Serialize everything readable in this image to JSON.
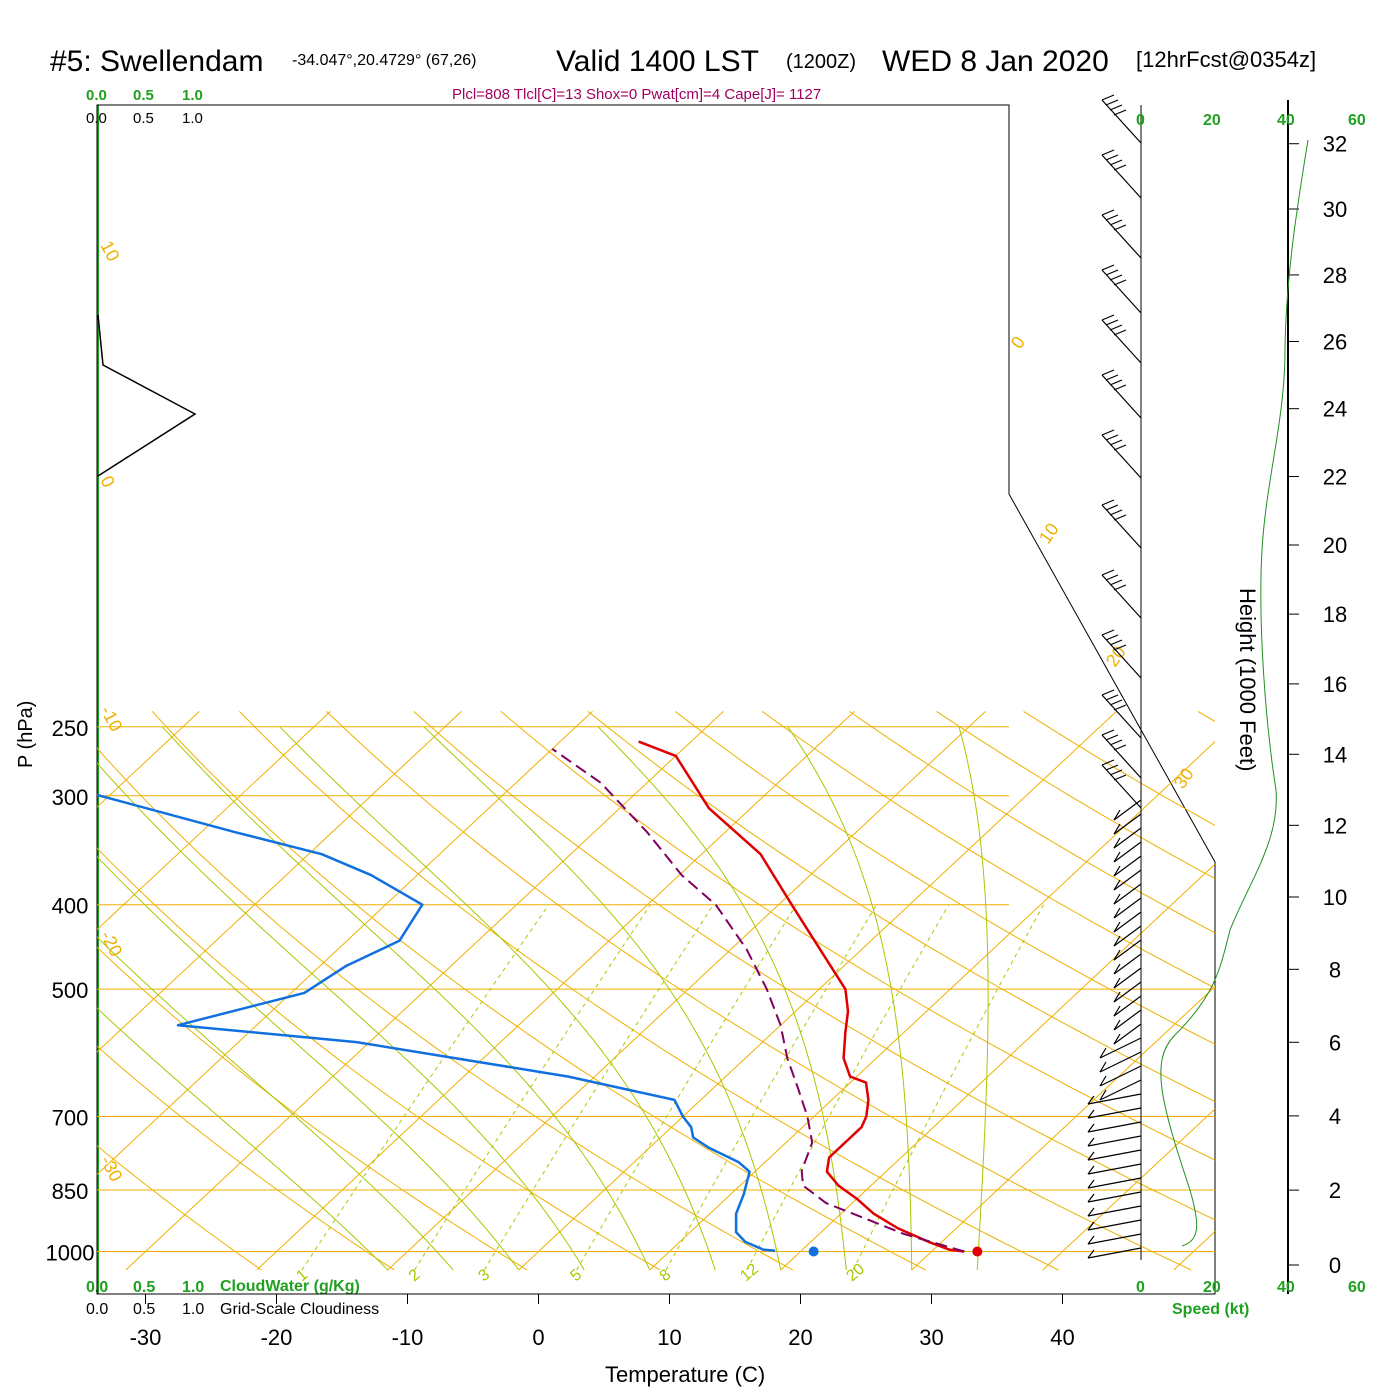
{
  "header": {
    "station": "#5: Swellendam",
    "coords": "-34.047°,20.4729° (67,26)",
    "valid": "Valid 1400 LST",
    "zulu": "(1200Z)",
    "date": "WED 8 Jan 2020",
    "forecast": "[12hrFcst@0354z]",
    "params": "Plcl=808 Tlcl[C]=13 Shox=0 Pwat[cm]=4 Cape[J]= 1127"
  },
  "cloud_scale_green": [
    "0.0",
    "0.5",
    "1.0"
  ],
  "cloud_scale_black": [
    "0.0",
    "0.5",
    "1.0"
  ],
  "cloud_water_label": "CloudWater (g/Kg)",
  "cloudiness_label": "Grid-Scale Cloudiness",
  "speed_label": "Speed (kt)",
  "colors": {
    "isotherm": "#f0b000",
    "dry_adiabat": "#f0b000",
    "moist_adiabat": "#a8c800",
    "mixing_ratio": "#a8c800",
    "temperature": "#e00000",
    "dewpoint": "#1070e0",
    "parcel": "#800060",
    "speed": "#209020",
    "params_text": "#a00060",
    "green_text": "#20a020"
  },
  "chart_data": {
    "type": "line",
    "title": "Skew-T sounding #5 Swellendam",
    "xlabel": "Temperature (C)",
    "ylabel": "P (hPa)",
    "y2label": "Height (1000 Feet)",
    "x_ticks": [
      "-30",
      "-20",
      "-10",
      "0",
      "10",
      "20",
      "30",
      "40"
    ],
    "p_ticks": [
      "250",
      "300",
      "400",
      "500",
      "700",
      "850",
      "1000"
    ],
    "height_ticks": [
      "0",
      "2",
      "4",
      "6",
      "8",
      "10",
      "12",
      "14",
      "16",
      "18",
      "20",
      "22",
      "24",
      "26",
      "28",
      "30",
      "32"
    ],
    "speed_ticks": [
      "0",
      "20",
      "40",
      "60"
    ],
    "dry_adiabat_labels": [
      "10",
      "0",
      "-10",
      "-20",
      "-30",
      "0",
      "10",
      "20",
      "30"
    ],
    "mixing_ratio_labels": [
      "1",
      "2",
      "3",
      "5",
      "8",
      "12",
      "20"
    ],
    "series": [
      {
        "name": "Temperature",
        "points": [
          [
            32.5,
            1000
          ],
          [
            31.2,
            995
          ],
          [
            29,
            975
          ],
          [
            25.5,
            940
          ],
          [
            22.5,
            905
          ],
          [
            20,
            870
          ],
          [
            17.5,
            840
          ],
          [
            15.5,
            810
          ],
          [
            14.5,
            780
          ],
          [
            14.5,
            750
          ],
          [
            14.5,
            720
          ],
          [
            14,
            700
          ],
          [
            12.8,
            670
          ],
          [
            11.2,
            640
          ],
          [
            9.5,
            630
          ],
          [
            7.5,
            600
          ],
          [
            5.5,
            560
          ],
          [
            4,
            530
          ],
          [
            2,
            500
          ],
          [
            -3.2,
            450
          ],
          [
            -9,
            400
          ],
          [
            -15.5,
            350
          ],
          [
            -23.2,
            310
          ],
          [
            -30,
            270
          ],
          [
            -34,
            260
          ]
        ]
      },
      {
        "name": "Dewpoint",
        "points": [
          [
            18,
            998
          ],
          [
            17,
            995
          ],
          [
            15,
            975
          ],
          [
            13.5,
            950
          ],
          [
            12,
            905
          ],
          [
            11,
            860
          ],
          [
            9.6,
            810
          ],
          [
            8,
            790
          ],
          [
            4.5,
            760
          ],
          [
            2.5,
            740
          ],
          [
            1.5,
            720
          ],
          [
            0,
            700
          ],
          [
            -2,
            670
          ],
          [
            -12,
            630
          ],
          [
            -31,
            575
          ],
          [
            -46,
            550
          ],
          [
            -39,
            505
          ],
          [
            -38,
            470
          ],
          [
            -36,
            440
          ],
          [
            -37.2,
            400
          ],
          [
            -43.5,
            370
          ],
          [
            -49,
            350
          ],
          [
            -57.5,
            330
          ],
          [
            -73,
            295
          ],
          [
            -81,
            279
          ],
          [
            -84,
            260
          ]
        ]
      },
      {
        "name": "Parcel",
        "points": [
          [
            32.5,
            1000
          ],
          [
            26.5,
            955
          ],
          [
            21.5,
            910
          ],
          [
            18,
            880
          ],
          [
            14.8,
            840
          ],
          [
            13.5,
            808
          ],
          [
            12,
            750
          ],
          [
            9.5,
            700
          ],
          [
            6.5,
            650
          ],
          [
            3.2,
            600
          ],
          [
            0,
            550
          ],
          [
            -4,
            500
          ],
          [
            -8.8,
            450
          ],
          [
            -14.8,
            400
          ],
          [
            -19.8,
            370
          ],
          [
            -26,
            330
          ],
          [
            -33.5,
            290
          ],
          [
            -40,
            265
          ]
        ]
      }
    ],
    "surface_temperature_marker": [
      33.5,
      1000
    ],
    "surface_dewpoint_marker": [
      21,
      1000
    ],
    "grid_temperatures": [
      -80,
      -70,
      -60,
      -50,
      -40,
      -30,
      -20,
      -10,
      0,
      10,
      20,
      30,
      40,
      50
    ]
  }
}
